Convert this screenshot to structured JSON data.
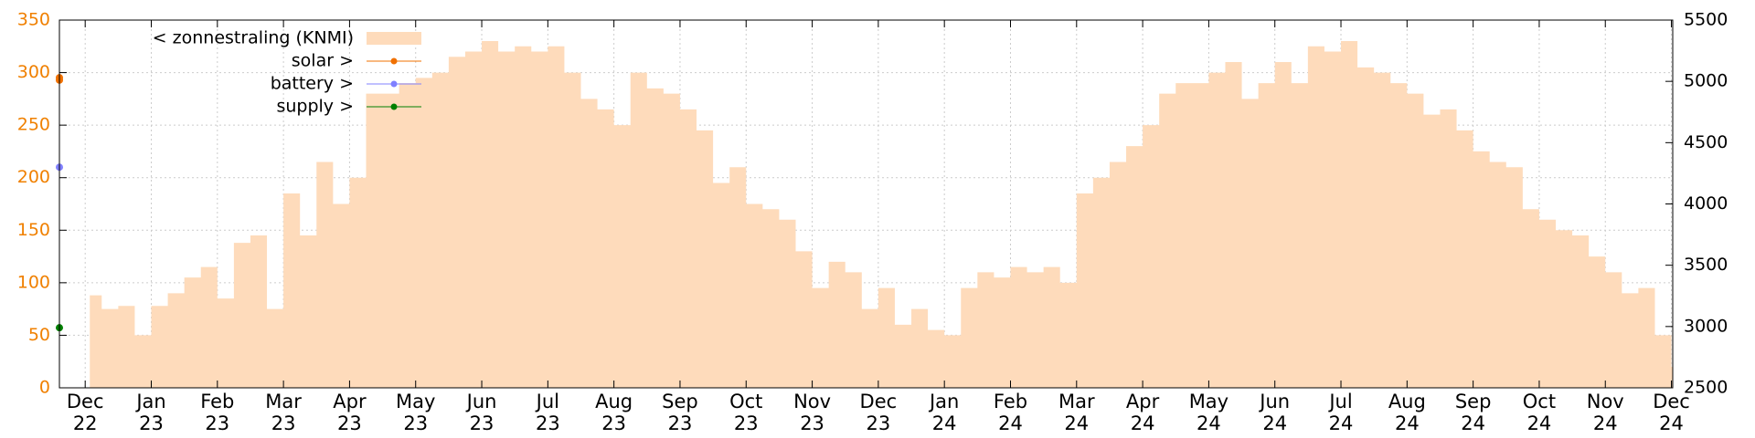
{
  "chart_data": {
    "type": "area",
    "xlim": [
      -0.39,
      24.02
    ],
    "xticks": [
      {
        "value": 0,
        "label": "Dec\n22"
      },
      {
        "value": 1,
        "label": "Jan\n23"
      },
      {
        "value": 2,
        "label": "Feb\n23"
      },
      {
        "value": 3,
        "label": "Mar\n23"
      },
      {
        "value": 4,
        "label": "Apr\n23"
      },
      {
        "value": 5,
        "label": "May\n23"
      },
      {
        "value": 6,
        "label": "Jun\n23"
      },
      {
        "value": 7,
        "label": "Jul\n23"
      },
      {
        "value": 8,
        "label": "Aug\n23"
      },
      {
        "value": 9,
        "label": "Sep\n23"
      },
      {
        "value": 10,
        "label": "Oct\n23"
      },
      {
        "value": 11,
        "label": "Nov\n23"
      },
      {
        "value": 12,
        "label": "Dec\n23"
      },
      {
        "value": 13,
        "label": "Jan\n24"
      },
      {
        "value": 14,
        "label": "Feb\n24"
      },
      {
        "value": 15,
        "label": "Mar\n24"
      },
      {
        "value": 16,
        "label": "Apr\n24"
      },
      {
        "value": 17,
        "label": "May\n24"
      },
      {
        "value": 18,
        "label": "Jun\n24"
      },
      {
        "value": 19,
        "label": "Jul\n24"
      },
      {
        "value": 20,
        "label": "Aug\n24"
      },
      {
        "value": 21,
        "label": "Sep\n24"
      },
      {
        "value": 22,
        "label": "Oct\n24"
      },
      {
        "value": 23,
        "label": "Nov\n24"
      },
      {
        "value": 24,
        "label": "Dec\n24"
      }
    ],
    "ylim": [
      0,
      350
    ],
    "yticks": [
      0,
      50,
      100,
      150,
      200,
      250,
      300,
      350
    ],
    "ytick_color": "#f08000",
    "y2lim": [
      2500,
      5500
    ],
    "y2ticks": [
      2500,
      3000,
      3500,
      4000,
      4500,
      5000,
      5500
    ],
    "grid": true,
    "series": [
      {
        "name": "< zonnestraling (KNMI)",
        "color": "#fedbbb",
        "style": "steps",
        "axis": "y",
        "x": [
          0.07,
          0.25,
          0.5,
          0.75,
          1,
          1.25,
          1.5,
          1.75,
          2,
          2.25,
          2.5,
          2.75,
          3,
          3.25,
          3.5,
          3.75,
          4,
          4.25,
          4.5,
          4.75,
          5,
          5.25,
          5.5,
          5.75,
          6,
          6.25,
          6.5,
          6.75,
          7,
          7.25,
          7.5,
          7.75,
          8,
          8.25,
          8.5,
          8.75,
          9,
          9.25,
          9.5,
          9.75,
          10,
          10.25,
          10.5,
          10.75,
          11,
          11.25,
          11.5,
          11.75,
          12,
          12.25,
          12.5,
          12.75,
          13,
          13.25,
          13.5,
          13.75,
          14,
          14.25,
          14.5,
          14.75,
          15,
          15.25,
          15.5,
          15.75,
          16,
          16.25,
          16.5,
          16.75,
          17,
          17.25,
          17.5,
          17.75,
          18,
          18.25,
          18.5,
          18.75,
          19,
          19.25,
          19.5,
          19.75,
          20,
          20.25,
          20.5,
          20.75,
          21,
          21.25,
          21.5,
          21.75,
          22,
          22.25,
          22.5,
          22.75,
          23,
          23.25,
          23.5,
          23.75,
          24
        ],
        "values": [
          88,
          75,
          78,
          50,
          78,
          90,
          105,
          115,
          85,
          138,
          145,
          75,
          185,
          145,
          215,
          175,
          200,
          280,
          280,
          290,
          295,
          300,
          315,
          320,
          330,
          320,
          325,
          320,
          325,
          300,
          275,
          265,
          250,
          300,
          285,
          280,
          265,
          245,
          195,
          210,
          175,
          170,
          160,
          130,
          95,
          120,
          110,
          75,
          95,
          60,
          75,
          55,
          50,
          95,
          110,
          105,
          115,
          110,
          115,
          100,
          185,
          200,
          215,
          230,
          250,
          280,
          290,
          290,
          300,
          310,
          275,
          290,
          310,
          290,
          325,
          320,
          330,
          305,
          300,
          290,
          280,
          260,
          265,
          245,
          225,
          215,
          210,
          170,
          160,
          150,
          145,
          125,
          110,
          90,
          95,
          50,
          20
        ]
      },
      {
        "name": "solar >",
        "color": "#f07000",
        "style": "points",
        "axis": "y2",
        "x": [
          -0.39,
          -0.39
        ],
        "values": [
          5030,
          5010
        ]
      },
      {
        "name": "battery >",
        "color": "#8080ff",
        "style": "points",
        "axis": "y2",
        "x": [
          -0.39
        ],
        "values": [
          4300
        ]
      },
      {
        "name": "supply >",
        "color": "#008000",
        "style": "points",
        "axis": "y2",
        "x": [
          -0.39
        ],
        "values": [
          2990
        ]
      }
    ]
  }
}
